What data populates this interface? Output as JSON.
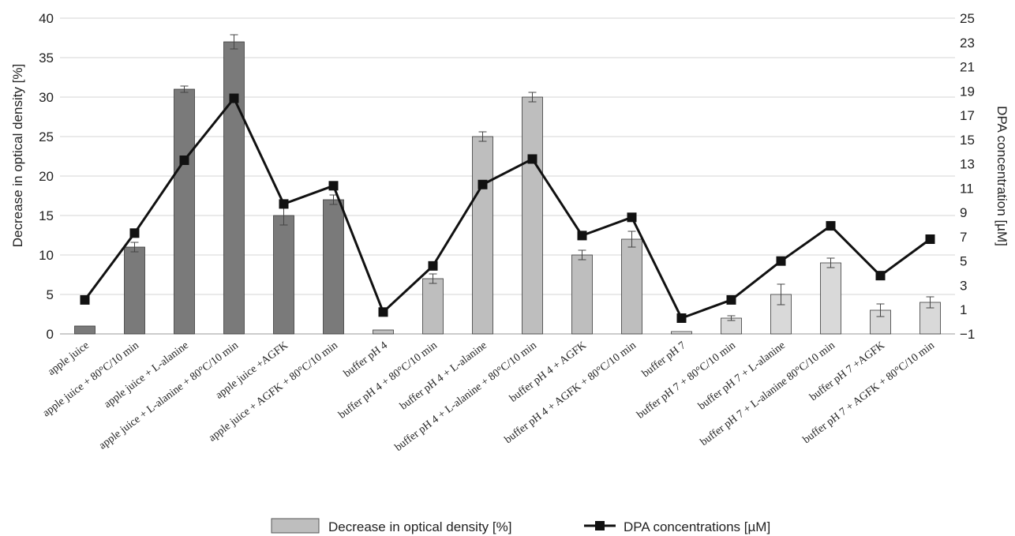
{
  "chart_data": {
    "type": "bar",
    "title": "",
    "categories": [
      "apple juice",
      "apple juice + 80°C/10 min",
      "apple juice + L-alanine",
      "apple juice + L-alanine + 80°C/10 min",
      "apple juice +AGFK",
      "apple juice + AGFK + 80°C/10 min",
      "buffer pH 4",
      "buffer pH 4 + 80°C/10 min",
      "buffer pH 4 + L-alanine",
      "buffer pH 4 + L-alanine + 80°C/10 min",
      "buffer pH 4 + AGFK",
      "buffer pH 4 + AGFK + 80°C/10 min",
      "buffer pH 7",
      "buffer pH 7 + 80°C/10 min",
      "buffer pH 7 + L-alanine",
      "buffer pH 7 + L-alanine 80°C/10 min",
      "buffer pH 7 +AGFK",
      "buffer pH 7 + AGFK + 80°C/10 min"
    ],
    "bar_colors": [
      "#7a7a7a",
      "#7a7a7a",
      "#7a7a7a",
      "#7a7a7a",
      "#7a7a7a",
      "#7a7a7a",
      "#bebebe",
      "#bebebe",
      "#bebebe",
      "#bebebe",
      "#bebebe",
      "#bebebe",
      "#d9d9d9",
      "#d9d9d9",
      "#d9d9d9",
      "#d9d9d9",
      "#d9d9d9",
      "#d9d9d9"
    ],
    "series": [
      {
        "name": "Decrease in optical density [%]",
        "kind": "bar",
        "axis": "left",
        "values": [
          1,
          11,
          31,
          37,
          15,
          17,
          0.5,
          7,
          25,
          30,
          10,
          12,
          0.3,
          2,
          5,
          9,
          3,
          4
        ],
        "errors": [
          0,
          0.6,
          0.4,
          0.9,
          1.2,
          0.6,
          0,
          0.6,
          0.6,
          0.6,
          0.6,
          1.0,
          0,
          0.3,
          1.3,
          0.6,
          0.8,
          0.7
        ]
      },
      {
        "name": "DPA concentrations [µM]",
        "kind": "line",
        "axis": "right",
        "color": "#111111",
        "values": [
          1.8,
          7.3,
          13.3,
          18.4,
          9.7,
          11.2,
          0.8,
          4.6,
          11.3,
          13.4,
          7.1,
          8.6,
          0.3,
          1.8,
          5.0,
          7.9,
          3.8,
          6.8
        ]
      }
    ],
    "ylabel": "Decrease in optical density [%]",
    "ylim": [
      0,
      40
    ],
    "yticks": [
      0,
      5,
      10,
      15,
      20,
      25,
      30,
      35,
      40
    ],
    "y2label": "DPA concentration [µM]",
    "y2lim": [
      -1,
      25
    ],
    "y2ticks": [
      -1,
      1,
      3,
      5,
      7,
      9,
      11,
      13,
      15,
      17,
      19,
      21,
      23,
      25
    ],
    "grid": true,
    "legend_position": "bottom-center"
  },
  "legend": {
    "bar_label": "Decrease in optical density [%]",
    "line_label": "DPA concentrations [µM]"
  }
}
